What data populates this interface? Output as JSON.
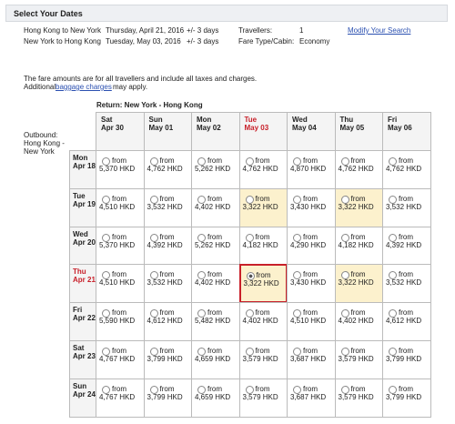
{
  "header": {
    "title": "Select Your Dates"
  },
  "search": {
    "rows": [
      [
        "Hong Kong to New York",
        "Thursday, April 21, 2016",
        "+/- 3 days",
        "Travellers:",
        "1"
      ],
      [
        "New York to Hong Kong",
        "Tuesday, May 03, 2016",
        "+/- 3 days",
        "Fare Type/Cabin:",
        "Economy"
      ]
    ],
    "link": "Modify Your Search"
  },
  "note": {
    "line1": "The fare amounts are for all travellers and include all taxes and charges.",
    "line2_pre": "Additional",
    "line2_link": "baggage charges",
    "line2_post": "may apply."
  },
  "grid": {
    "return_label": "Return: New York - Hong Kong",
    "outbound_label": "Outbound: Hong Kong - New York",
    "from": "from",
    "columns": [
      {
        "day": "Sat",
        "date": "Apr 30"
      },
      {
        "day": "Sun",
        "date": "May 01"
      },
      {
        "day": "Mon",
        "date": "May 02"
      },
      {
        "day": "Tue",
        "date": "May 03",
        "selected": true
      },
      {
        "day": "Wed",
        "date": "May 04"
      },
      {
        "day": "Thu",
        "date": "May 05"
      },
      {
        "day": "Fri",
        "date": "May 06"
      }
    ],
    "rows": [
      {
        "day": "Mon",
        "date": "Apr 18",
        "cells": [
          {
            "price": "5,370 HKD"
          },
          {
            "price": "4,762 HKD"
          },
          {
            "price": "5,262 HKD"
          },
          {
            "price": "4,762 HKD"
          },
          {
            "price": "4,870 HKD"
          },
          {
            "price": "4,762 HKD"
          },
          {
            "price": "4,762 HKD"
          }
        ]
      },
      {
        "day": "Tue",
        "date": "Apr 19",
        "cells": [
          {
            "price": "4,510 HKD"
          },
          {
            "price": "3,532 HKD"
          },
          {
            "price": "4,402 HKD"
          },
          {
            "price": "3,322 HKD",
            "style": "cheapest"
          },
          {
            "price": "3,430 HKD"
          },
          {
            "price": "3,322 HKD",
            "style": "cheapest"
          },
          {
            "price": "3,532 HKD"
          }
        ]
      },
      {
        "day": "Wed",
        "date": "Apr 20",
        "cells": [
          {
            "price": "5,370 HKD"
          },
          {
            "price": "4,392 HKD"
          },
          {
            "price": "5,262 HKD"
          },
          {
            "price": "4,182 HKD"
          },
          {
            "price": "4,290 HKD"
          },
          {
            "price": "4,182 HKD"
          },
          {
            "price": "4,392 HKD"
          }
        ]
      },
      {
        "day": "Thu",
        "date": "Apr 21",
        "selected": true,
        "cells": [
          {
            "price": "4,510 HKD"
          },
          {
            "price": "3,532 HKD"
          },
          {
            "price": "4,402 HKD"
          },
          {
            "price": "3,322 HKD",
            "style": "selected"
          },
          {
            "price": "3,430 HKD"
          },
          {
            "price": "3,322 HKD",
            "style": "cheapest"
          },
          {
            "price": "3,532 HKD"
          }
        ]
      },
      {
        "day": "Fri",
        "date": "Apr 22",
        "cells": [
          {
            "price": "5,590 HKD"
          },
          {
            "price": "4,612 HKD"
          },
          {
            "price": "5,482 HKD"
          },
          {
            "price": "4,402 HKD"
          },
          {
            "price": "4,510 HKD"
          },
          {
            "price": "4,402 HKD"
          },
          {
            "price": "4,612 HKD"
          }
        ]
      },
      {
        "day": "Sat",
        "date": "Apr 23",
        "cells": [
          {
            "price": "4,767 HKD"
          },
          {
            "price": "3,799 HKD"
          },
          {
            "price": "4,659 HKD"
          },
          {
            "price": "3,579 HKD"
          },
          {
            "price": "3,687 HKD"
          },
          {
            "price": "3,579 HKD"
          },
          {
            "price": "3,799 HKD"
          }
        ]
      },
      {
        "day": "Sun",
        "date": "Apr 24",
        "cells": [
          {
            "price": "4,767 HKD"
          },
          {
            "price": "3,799 HKD"
          },
          {
            "price": "4,659 HKD"
          },
          {
            "price": "3,579 HKD"
          },
          {
            "price": "3,687 HKD"
          },
          {
            "price": "3,579 HKD"
          },
          {
            "price": "3,799 HKD"
          }
        ]
      }
    ]
  }
}
